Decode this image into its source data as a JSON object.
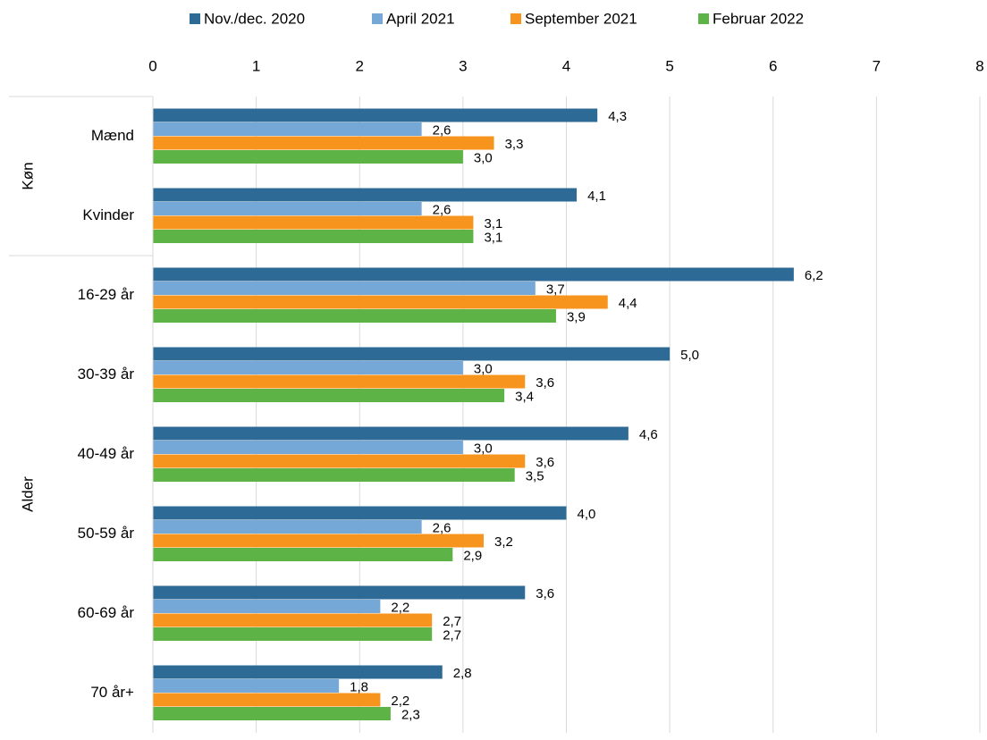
{
  "chart_data": {
    "type": "bar",
    "orientation": "horizontal",
    "groups": [
      {
        "name": "Køn",
        "categories": [
          "Mænd",
          "Kvinder"
        ]
      },
      {
        "name": "Alder",
        "categories": [
          "16-29 år",
          "30-39 år",
          "40-49 år",
          "50-59 år",
          "60-69 år",
          "70 år+"
        ]
      }
    ],
    "series": [
      {
        "name": "Nov./dec. 2020",
        "color": "#2e6a96",
        "values": [
          4.3,
          4.1,
          6.2,
          5.0,
          4.6,
          4.0,
          3.6,
          2.8
        ],
        "value_labels": [
          "4,3",
          "4,1",
          "6,2",
          "5,0",
          "4,6",
          "4,0",
          "3,6",
          "2,8"
        ]
      },
      {
        "name": "April 2021",
        "color": "#75a7d7",
        "values": [
          2.6,
          2.6,
          3.7,
          3.0,
          3.0,
          2.6,
          2.2,
          1.8
        ],
        "value_labels": [
          "2,6",
          "2,6",
          "3,7",
          "3,0",
          "3,0",
          "2,6",
          "2,2",
          "1,8"
        ]
      },
      {
        "name": "September 2021",
        "color": "#f7941d",
        "values": [
          3.3,
          3.1,
          4.4,
          3.6,
          3.6,
          3.2,
          2.7,
          2.2
        ],
        "value_labels": [
          "3,3",
          "3,1",
          "4,4",
          "3,6",
          "3,6",
          "3,2",
          "2,7",
          "2,2"
        ]
      },
      {
        "name": "Februar 2022",
        "color": "#5eb346",
        "values": [
          3.0,
          3.1,
          3.9,
          3.4,
          3.5,
          2.9,
          2.7,
          2.3
        ],
        "value_labels": [
          "3,0",
          "3,1",
          "3,9",
          "3,4",
          "3,5",
          "2,9",
          "2,7",
          "2,3"
        ]
      }
    ],
    "xlim": [
      0,
      8
    ],
    "xticks": [
      0,
      1,
      2,
      3,
      4,
      5,
      6,
      7,
      8
    ],
    "grid": true,
    "legend": "top"
  }
}
